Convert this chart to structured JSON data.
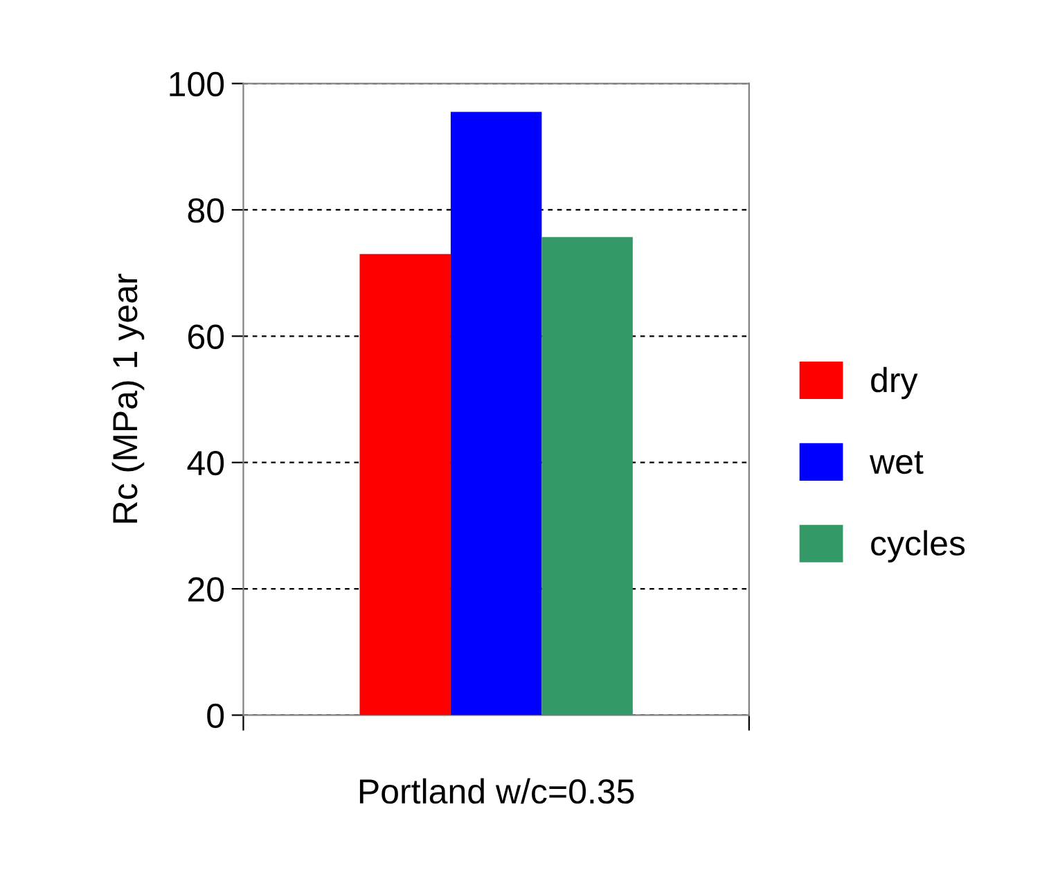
{
  "chart_data": {
    "type": "bar",
    "ylabel": "Rc (MPa) 1 year",
    "categories": [
      "Portland w/c=0.35"
    ],
    "series": [
      {
        "name": "dry",
        "color": "#ff0000",
        "values": [
          73
        ]
      },
      {
        "name": "wet",
        "color": "#0000ff",
        "values": [
          95.5
        ]
      },
      {
        "name": "cycles",
        "color": "#339966",
        "values": [
          75.7
        ]
      }
    ],
    "ylim": [
      0,
      100
    ],
    "yticks": [
      0,
      20,
      40,
      60,
      80,
      100
    ],
    "grid": "y",
    "legend": "right"
  }
}
